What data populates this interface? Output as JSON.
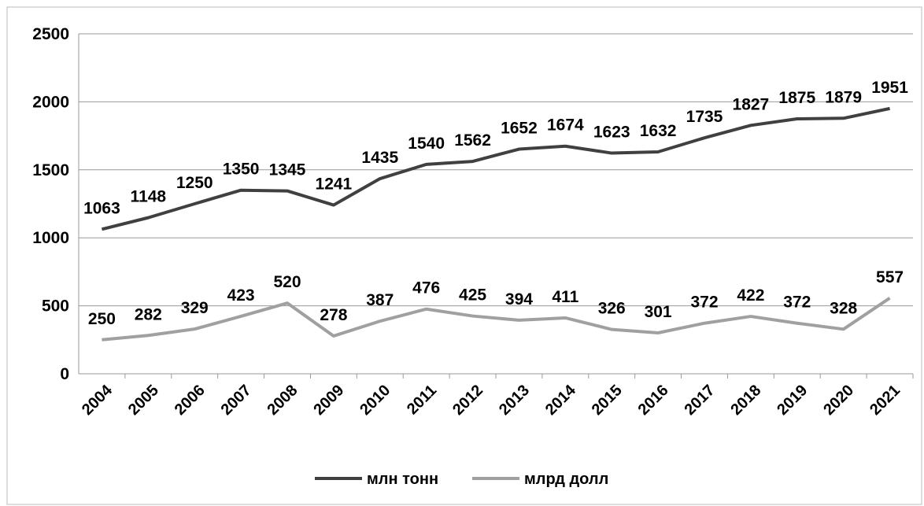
{
  "chart_data": {
    "type": "line",
    "categories": [
      "2004",
      "2005",
      "2006",
      "2007",
      "2008",
      "2009",
      "2010",
      "2011",
      "2012",
      "2013",
      "2014",
      "2015",
      "2016",
      "2017",
      "2018",
      "2019",
      "2020",
      "2021"
    ],
    "series": [
      {
        "name": "млн тонн",
        "color": "#404040",
        "values": [
          1063,
          1148,
          1250,
          1350,
          1345,
          1241,
          1435,
          1540,
          1562,
          1652,
          1674,
          1623,
          1632,
          1735,
          1827,
          1875,
          1879,
          1951
        ]
      },
      {
        "name": "млрд долл",
        "color": "#a0a0a0",
        "values": [
          250,
          282,
          329,
          423,
          520,
          278,
          387,
          476,
          425,
          394,
          411,
          326,
          301,
          372,
          422,
          372,
          328,
          557
        ]
      }
    ],
    "ylim": [
      0,
      2500
    ],
    "yticks": [
      0,
      500,
      1000,
      1500,
      2000,
      2500
    ],
    "grid": true,
    "legend": "bottom"
  }
}
